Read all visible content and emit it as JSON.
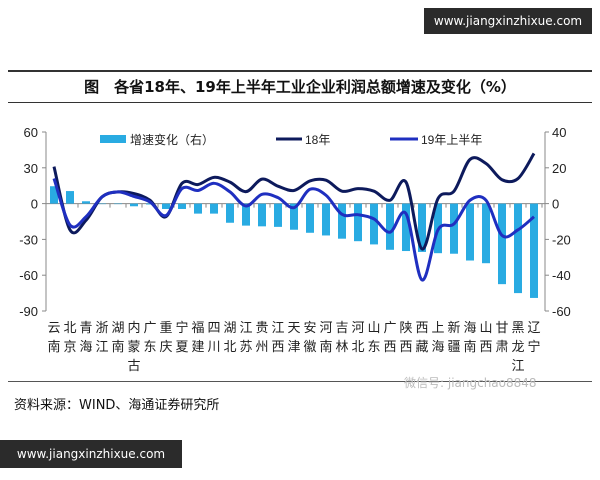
{
  "watermark": {
    "top": "www.jiangxinzhixue.com",
    "bottom": "www.jiangxinzhixue.com",
    "wechat": "微信号: jiangchao8848"
  },
  "title": "图　各省18年、19年上半年工业企业利润总额增速及变化（%）",
  "source": "资料来源：WIND、海通证券研究所",
  "colors": {
    "bar": "#29abe2",
    "line18": "#0d1a5c",
    "line19": "#1f2fc0"
  },
  "chart_data": {
    "type": "bar+line",
    "categories": [
      "云南",
      "北京",
      "青海",
      "浙江",
      "湖南",
      "内蒙古",
      "广东",
      "重庆",
      "宁夏",
      "福建",
      "四川",
      "湖北",
      "江苏",
      "贵州",
      "江西",
      "天津",
      "安徽",
      "河南",
      "吉林",
      "河北",
      "山东",
      "广西",
      "陕西",
      "西藏",
      "上海",
      "新疆",
      "海南",
      "山西",
      "甘肃",
      "黑龙江",
      "辽宁"
    ],
    "series": [
      {
        "name": "增速变化（右）",
        "type": "bar",
        "axis": "right",
        "values": [
          9.7,
          7,
          1.3,
          0,
          0,
          -1.5,
          -0.5,
          -3,
          -3,
          -5.6,
          -5.6,
          -10.7,
          -12.3,
          -12.7,
          -13,
          -14.6,
          -16.3,
          -17.8,
          -19.6,
          -21,
          -22.8,
          -25.8,
          -26.5,
          -27,
          -27.7,
          -28,
          -31.8,
          -33.3,
          -45,
          -50,
          -52.7
        ]
      },
      {
        "name": "18年",
        "type": "line",
        "axis": "left",
        "values": [
          31,
          -22,
          -14,
          5.6,
          9.8,
          8.4,
          2.8,
          -11,
          17,
          16,
          22,
          18,
          10,
          20.5,
          14.6,
          11,
          19,
          19.6,
          10.4,
          12.6,
          10.4,
          2.8,
          18,
          -38,
          4.2,
          10.4,
          37,
          33.6,
          20,
          21,
          42
        ]
      },
      {
        "name": "19年上半年",
        "type": "line",
        "axis": "left",
        "values": [
          21,
          -18,
          -11,
          5.6,
          9.8,
          6,
          1.4,
          -10,
          12.6,
          11,
          17,
          9.8,
          -2,
          7.8,
          5,
          -3.4,
          12,
          7,
          -9,
          -9.3,
          -12.9,
          -24,
          -8.4,
          -64,
          -22,
          -17,
          2.8,
          2.8,
          -26.6,
          -22,
          -11
        ]
      }
    ],
    "left_axis": {
      "range": [
        -90,
        60
      ],
      "ticks": [
        "60",
        "30",
        "0",
        "-30",
        "-60",
        "-90"
      ]
    },
    "right_axis": {
      "range": [
        -60,
        40
      ],
      "ticks": [
        "40",
        "20",
        "0",
        "-20",
        "-40",
        "-60"
      ]
    },
    "legend": {
      "position": "top",
      "items": [
        "增速变化（右）",
        "18年",
        "19年上半年"
      ]
    }
  }
}
